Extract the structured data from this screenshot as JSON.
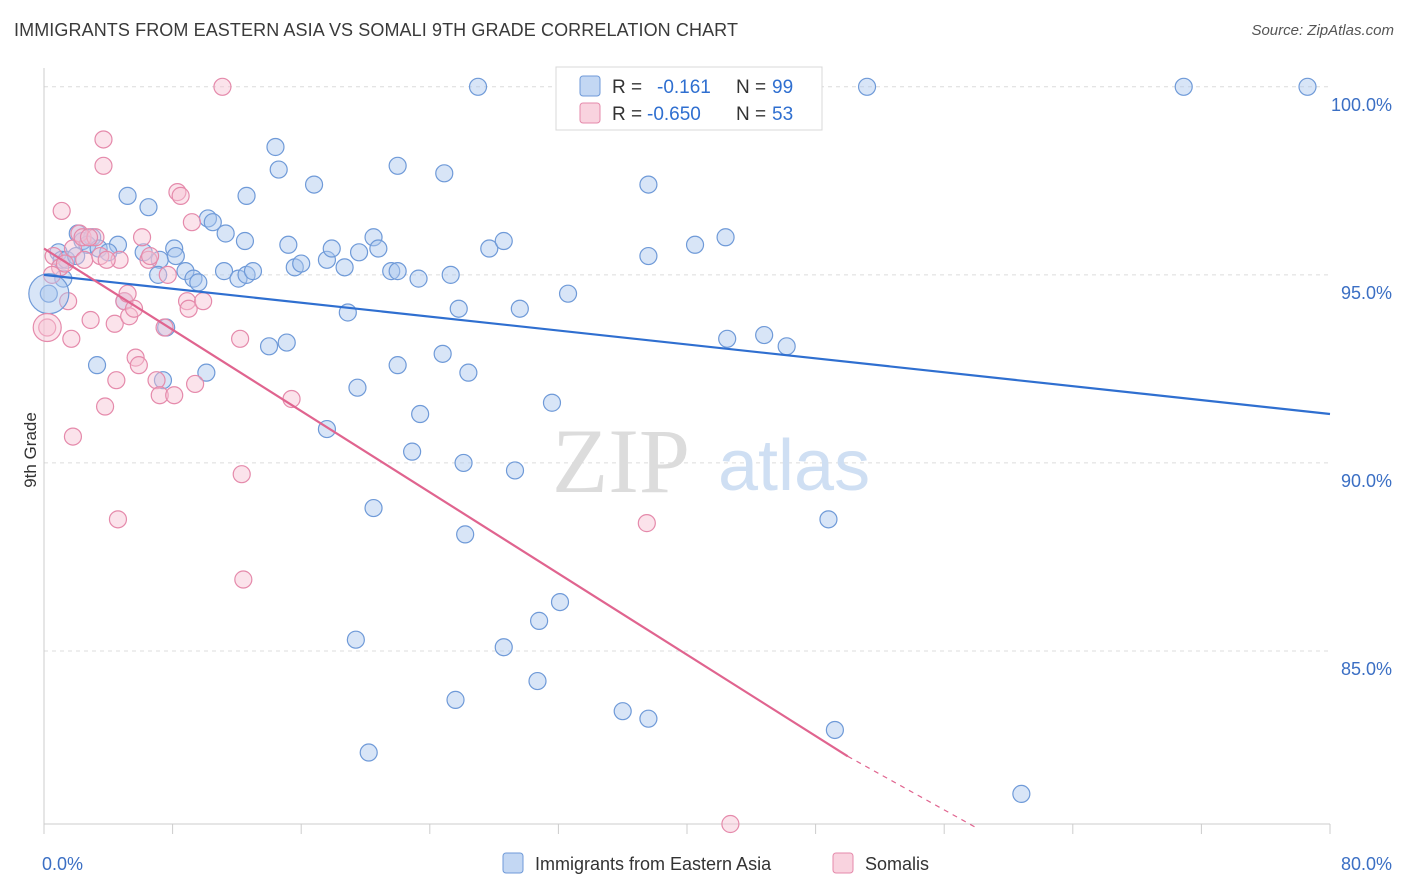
{
  "title": "IMMIGRANTS FROM EASTERN ASIA VS SOMALI 9TH GRADE CORRELATION CHART",
  "source": "Source: ZipAtlas.com",
  "watermark": {
    "zip": "ZIP",
    "atlas": "atlas"
  },
  "colors": {
    "blue_fill": "#a9c6ee",
    "blue_stroke": "#6f9ad8",
    "blue_line": "#2f6fd0",
    "pink_fill": "#f6c0d2",
    "pink_stroke": "#e58aab",
    "pink_line": "#e0648f",
    "grid": "#dcdcdc",
    "tick_text": "#3b6fc4"
  },
  "chart_data": {
    "type": "scatter",
    "title": "IMMIGRANTS FROM EASTERN ASIA VS SOMALI 9TH GRADE CORRELATION CHART",
    "xlabel": "",
    "ylabel": "9th Grade",
    "xlim": [
      0,
      80
    ],
    "ylim": [
      80.4,
      100.5
    ],
    "x_tick_labels": [
      {
        "value": 0,
        "label": "0.0%"
      },
      {
        "value": 80,
        "label": "80.0%"
      }
    ],
    "y_tick_labels": [
      {
        "value": 100,
        "label": "100.0%"
      },
      {
        "value": 95,
        "label": "95.0%"
      },
      {
        "value": 90,
        "label": "90.0%"
      },
      {
        "value": 85,
        "label": "85.0%"
      }
    ],
    "grid": true,
    "legend_position": "bottom",
    "stats": [
      {
        "r_label": "R =",
        "r_value": "-0.161",
        "n_label": "N =",
        "n_value": "99"
      },
      {
        "r_label": "R =",
        "r_value": "-0.650",
        "n_label": "N =",
        "n_value": "53"
      }
    ],
    "series": [
      {
        "name": "Immigrants from Eastern Asia",
        "color": "#6f9ad8",
        "trend": {
          "x": [
            0,
            80
          ],
          "y": [
            95.0,
            91.3
          ]
        },
        "points": [
          [
            0.3,
            94.5
          ],
          [
            0.9,
            95.6
          ],
          [
            1.1,
            95.4
          ],
          [
            1.4,
            95.4
          ],
          [
            2.1,
            96.1
          ],
          [
            2.4,
            95.9
          ],
          [
            3.0,
            96.0
          ],
          [
            2.7,
            95.8
          ],
          [
            3.4,
            95.7
          ],
          [
            4.6,
            95.8
          ],
          [
            3.3,
            92.6
          ],
          [
            5.2,
            97.1
          ],
          [
            6.5,
            96.8
          ],
          [
            5.0,
            94.3
          ],
          [
            7.2,
            95.4
          ],
          [
            7.1,
            95.0
          ],
          [
            7.6,
            93.6
          ],
          [
            8.1,
            95.7
          ],
          [
            8.2,
            95.5
          ],
          [
            8.8,
            95.1
          ],
          [
            9.3,
            94.9
          ],
          [
            7.4,
            92.2
          ],
          [
            10.1,
            92.4
          ],
          [
            10.2,
            96.5
          ],
          [
            10.5,
            96.4
          ],
          [
            11.3,
            96.1
          ],
          [
            11.2,
            95.1
          ],
          [
            12.1,
            94.9
          ],
          [
            12.5,
            95.9
          ],
          [
            12.6,
            95.0
          ],
          [
            13.0,
            95.1
          ],
          [
            12.6,
            97.1
          ],
          [
            14.4,
            98.4
          ],
          [
            14.6,
            97.8
          ],
          [
            15.2,
            95.8
          ],
          [
            15.6,
            95.2
          ],
          [
            16.0,
            95.3
          ],
          [
            16.8,
            97.4
          ],
          [
            17.6,
            95.4
          ],
          [
            17.9,
            95.7
          ],
          [
            15.1,
            93.2
          ],
          [
            14.0,
            93.1
          ],
          [
            18.7,
            95.2
          ],
          [
            18.9,
            94.0
          ],
          [
            19.6,
            95.6
          ],
          [
            20.5,
            96.0
          ],
          [
            20.8,
            95.7
          ],
          [
            21.6,
            95.1
          ],
          [
            22.0,
            95.1
          ],
          [
            22.0,
            97.9
          ],
          [
            23.3,
            94.9
          ],
          [
            22.0,
            92.6
          ],
          [
            24.9,
            97.7
          ],
          [
            24.8,
            92.9
          ],
          [
            25.3,
            95.0
          ],
          [
            25.8,
            94.1
          ],
          [
            26.4,
            92.4
          ],
          [
            27.7,
            95.7
          ],
          [
            28.6,
            95.9
          ],
          [
            29.6,
            94.1
          ],
          [
            19.5,
            92.0
          ],
          [
            17.6,
            90.9
          ],
          [
            23.4,
            91.3
          ],
          [
            22.9,
            90.3
          ],
          [
            26.1,
            90.0
          ],
          [
            26.2,
            88.1
          ],
          [
            31.6,
            91.6
          ],
          [
            29.3,
            89.8
          ],
          [
            20.5,
            88.8
          ],
          [
            32.6,
            94.5
          ],
          [
            37.6,
            97.4
          ],
          [
            42.5,
            93.3
          ],
          [
            46.2,
            93.1
          ],
          [
            48.8,
            88.5
          ],
          [
            30.7,
            84.2
          ],
          [
            28.6,
            85.1
          ],
          [
            30.8,
            85.8
          ],
          [
            32.1,
            86.3
          ],
          [
            19.4,
            85.3
          ],
          [
            25.6,
            83.7
          ],
          [
            36.0,
            83.4
          ],
          [
            37.6,
            83.2
          ],
          [
            49.2,
            82.9
          ],
          [
            20.2,
            82.3
          ],
          [
            60.8,
            81.2
          ],
          [
            27.0,
            100.0
          ],
          [
            51.2,
            100.0
          ],
          [
            70.9,
            100.0
          ],
          [
            78.6,
            100.0
          ],
          [
            34.3,
            100.0
          ],
          [
            37.6,
            95.5
          ],
          [
            40.5,
            95.8
          ],
          [
            42.4,
            96.0
          ],
          [
            44.8,
            93.4
          ],
          [
            6.2,
            95.6
          ],
          [
            9.6,
            94.8
          ],
          [
            4.0,
            95.6
          ],
          [
            2.0,
            95.5
          ],
          [
            1.2,
            94.9
          ]
        ]
      },
      {
        "name": "Somalis",
        "color": "#e58aab",
        "trend": {
          "x": [
            0,
            50
          ],
          "y": [
            95.7,
            82.2
          ]
        },
        "trend_dashed": {
          "x": [
            50,
            58
          ],
          "y": [
            82.2,
            80.3
          ]
        },
        "points": [
          [
            0.2,
            93.6
          ],
          [
            0.6,
            95.5
          ],
          [
            1.0,
            95.2
          ],
          [
            1.1,
            96.7
          ],
          [
            1.5,
            94.3
          ],
          [
            1.7,
            93.3
          ],
          [
            1.8,
            95.7
          ],
          [
            2.2,
            96.1
          ],
          [
            2.4,
            96.0
          ],
          [
            2.5,
            95.4
          ],
          [
            2.9,
            93.8
          ],
          [
            3.2,
            96.0
          ],
          [
            3.5,
            95.5
          ],
          [
            1.8,
            90.7
          ],
          [
            3.8,
            91.5
          ],
          [
            3.7,
            97.9
          ],
          [
            3.7,
            98.6
          ],
          [
            4.4,
            93.7
          ],
          [
            4.5,
            92.2
          ],
          [
            4.7,
            95.4
          ],
          [
            5.0,
            94.3
          ],
          [
            5.3,
            93.9
          ],
          [
            5.6,
            94.1
          ],
          [
            5.7,
            92.8
          ],
          [
            5.9,
            92.6
          ],
          [
            6.1,
            96.0
          ],
          [
            6.5,
            95.4
          ],
          [
            7.0,
            92.2
          ],
          [
            7.2,
            91.8
          ],
          [
            7.5,
            93.6
          ],
          [
            7.7,
            95.0
          ],
          [
            8.1,
            91.8
          ],
          [
            8.3,
            97.2
          ],
          [
            8.5,
            97.1
          ],
          [
            8.9,
            94.3
          ],
          [
            9.0,
            94.1
          ],
          [
            9.2,
            96.4
          ],
          [
            9.4,
            92.1
          ],
          [
            9.9,
            94.3
          ],
          [
            11.1,
            100.0
          ],
          [
            12.2,
            93.3
          ],
          [
            12.3,
            89.7
          ],
          [
            12.4,
            86.9
          ],
          [
            15.4,
            91.7
          ],
          [
            4.6,
            88.5
          ],
          [
            37.5,
            88.4
          ],
          [
            42.7,
            80.4
          ],
          [
            0.5,
            95.0
          ],
          [
            1.3,
            95.3
          ],
          [
            2.8,
            96.0
          ],
          [
            3.9,
            95.4
          ],
          [
            6.6,
            95.5
          ],
          [
            5.2,
            94.5
          ]
        ]
      }
    ]
  }
}
